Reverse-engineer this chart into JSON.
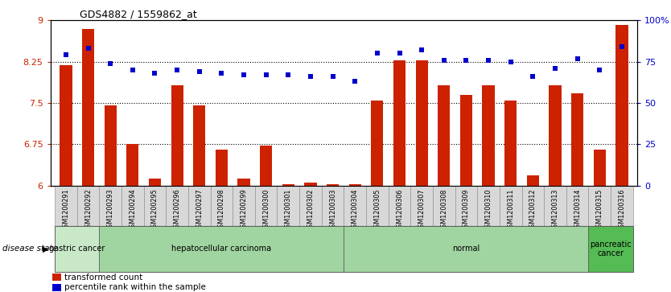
{
  "title": "GDS4882 / 1559862_at",
  "samples": [
    "GSM1200291",
    "GSM1200292",
    "GSM1200293",
    "GSM1200294",
    "GSM1200295",
    "GSM1200296",
    "GSM1200297",
    "GSM1200298",
    "GSM1200299",
    "GSM1200300",
    "GSM1200301",
    "GSM1200302",
    "GSM1200303",
    "GSM1200304",
    "GSM1200305",
    "GSM1200306",
    "GSM1200307",
    "GSM1200308",
    "GSM1200309",
    "GSM1200310",
    "GSM1200311",
    "GSM1200312",
    "GSM1200313",
    "GSM1200314",
    "GSM1200315",
    "GSM1200316"
  ],
  "bar_values": [
    8.18,
    8.85,
    7.45,
    6.75,
    6.12,
    7.82,
    7.45,
    6.65,
    6.12,
    6.72,
    6.02,
    6.05,
    6.02,
    6.02,
    7.55,
    8.28,
    8.28,
    7.82,
    7.65,
    7.82,
    7.55,
    6.18,
    7.82,
    7.68,
    6.65,
    8.92
  ],
  "percentile_values": [
    79,
    83,
    74,
    70,
    68,
    70,
    69,
    68,
    67,
    67,
    67,
    66,
    66,
    63,
    80,
    80,
    82,
    76,
    76,
    76,
    75,
    66,
    71,
    77,
    70,
    84
  ],
  "ylim_left": [
    6.0,
    9.0
  ],
  "ylim_right": [
    0,
    100
  ],
  "yticks_left": [
    6.0,
    6.75,
    7.5,
    8.25,
    9.0
  ],
  "ytick_labels_left": [
    "6",
    "6.75",
    "7.5",
    "8.25",
    "9"
  ],
  "yticks_right": [
    0,
    25,
    50,
    75,
    100
  ],
  "ytick_labels_right": [
    "0",
    "25",
    "50",
    "75",
    "100%"
  ],
  "bar_color": "#cc2200",
  "scatter_color": "#0000cc",
  "groups": [
    {
      "label": "gastric cancer",
      "start": 0,
      "end": 2,
      "color": "#c8e8c8"
    },
    {
      "label": "hepatocellular carcinoma",
      "start": 2,
      "end": 13,
      "color": "#a0d4a0"
    },
    {
      "label": "normal",
      "start": 13,
      "end": 24,
      "color": "#a0d4a0"
    },
    {
      "label": "pancreatic\ncancer",
      "start": 24,
      "end": 26,
      "color": "#55bb55"
    }
  ],
  "legend_items": [
    {
      "label": "transformed count",
      "color": "#cc2200"
    },
    {
      "label": "percentile rank within the sample",
      "color": "#0000cc"
    }
  ],
  "disease_state_label": "disease state"
}
